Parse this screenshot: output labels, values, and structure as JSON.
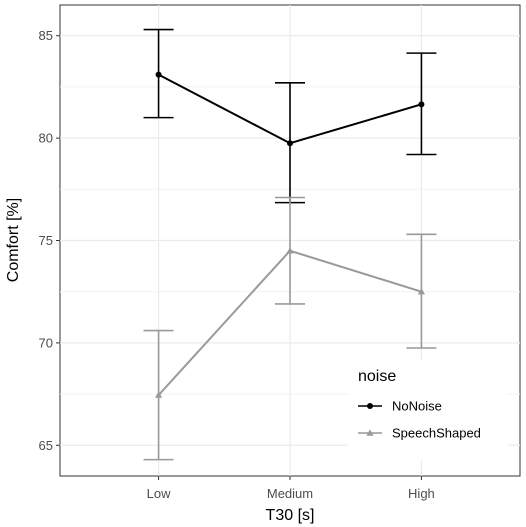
{
  "chart_data": {
    "type": "line",
    "xlabel": "T30 [s]",
    "ylabel": "Comfort [%]",
    "categories": [
      "Low",
      "Medium",
      "High"
    ],
    "ylim": [
      63.5,
      86.5
    ],
    "yticks": [
      65,
      70,
      75,
      80,
      85
    ],
    "grid": true,
    "legend": {
      "title": "noise",
      "position": "bottom-right, inside plot"
    },
    "series": [
      {
        "name": "NoNoise",
        "color": "#000000",
        "marker": "circle",
        "values": [
          83.1,
          79.75,
          81.65
        ],
        "error_low": [
          81.0,
          76.85,
          79.2
        ],
        "error_high": [
          85.3,
          82.7,
          84.15
        ]
      },
      {
        "name": "SpeechShaped",
        "color": "#999999",
        "marker": "triangle",
        "values": [
          67.45,
          74.5,
          72.5
        ],
        "error_low": [
          64.3,
          71.9,
          69.75
        ],
        "error_high": [
          70.6,
          77.1,
          75.3
        ]
      }
    ]
  }
}
